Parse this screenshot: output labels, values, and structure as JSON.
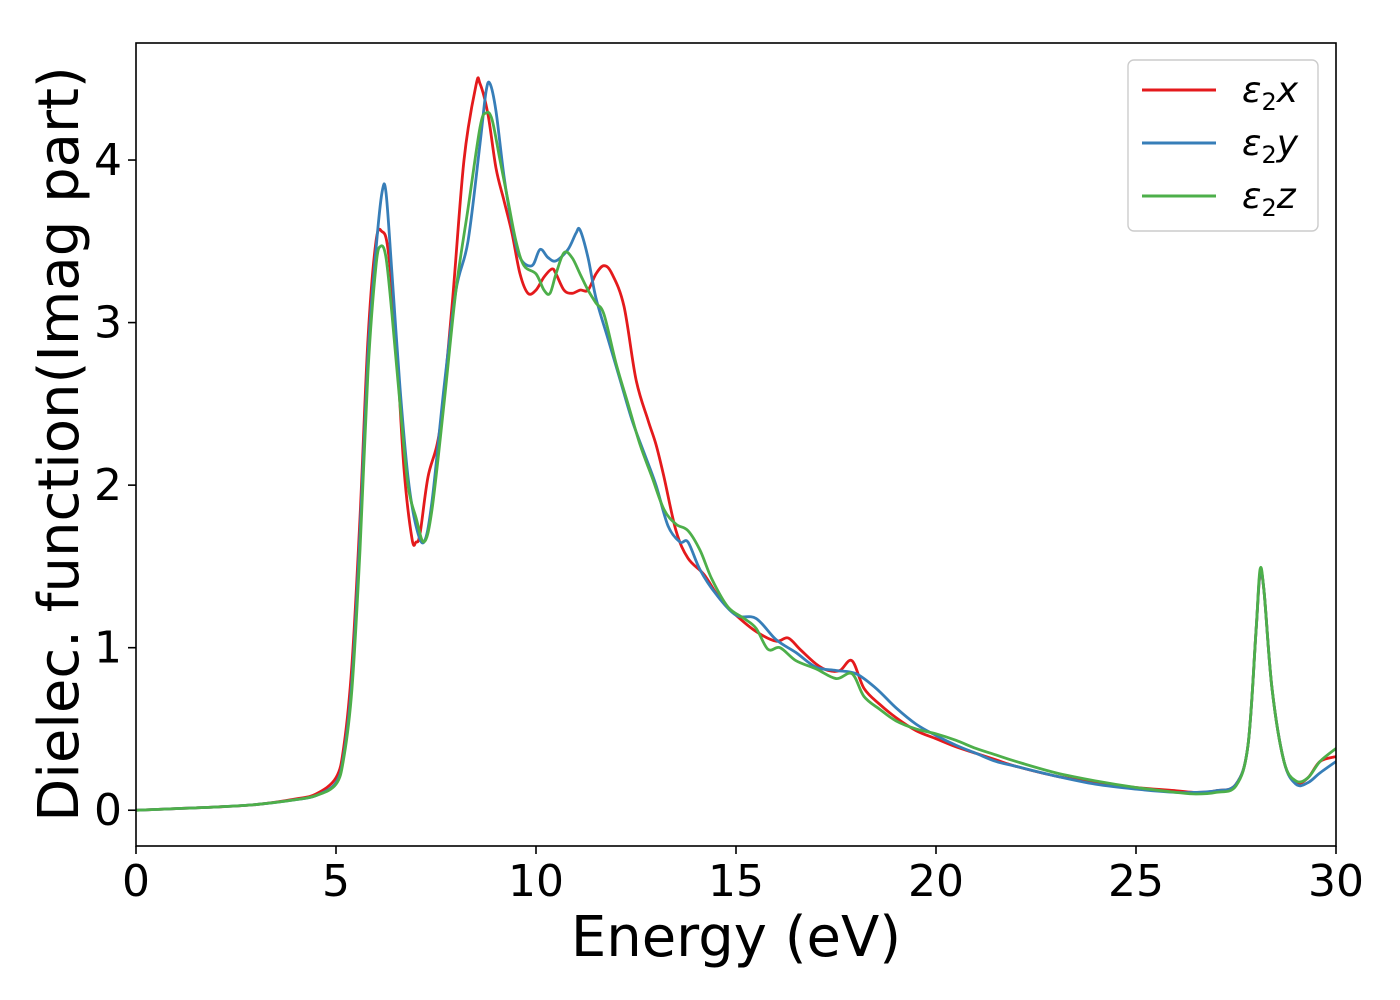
{
  "chart_data": {
    "type": "line",
    "title": "",
    "xlabel": "Energy (eV)",
    "ylabel": "Dielec. function(Imag part)",
    "xlim": [
      0,
      30
    ],
    "ylim": [
      -0.22,
      4.72
    ],
    "xticks": [
      0,
      5,
      10,
      15,
      20,
      25,
      30
    ],
    "yticks": [
      0,
      1,
      2,
      3,
      4
    ],
    "grid": false,
    "legend_position": "top-right",
    "series": [
      {
        "name": "ε2x",
        "legend_base": "ε",
        "legend_sub": "2",
        "legend_suffix": "x",
        "color": "#e41a1c",
        "x": [
          0,
          1,
          2,
          3,
          4,
          4.5,
          5,
          5.2,
          5.4,
          5.6,
          5.8,
          6.0,
          6.15,
          6.3,
          6.5,
          6.7,
          6.9,
          7.0,
          7.1,
          7.3,
          7.6,
          7.9,
          8.2,
          8.5,
          8.6,
          8.8,
          9.0,
          9.2,
          9.4,
          9.6,
          9.8,
          10.0,
          10.2,
          10.4,
          10.5,
          10.7,
          10.9,
          11.1,
          11.3,
          11.5,
          11.7,
          11.9,
          12.2,
          12.5,
          12.8,
          13.0,
          13.2,
          13.5,
          13.8,
          14.2,
          14.6,
          15.0,
          15.5,
          16.0,
          16.3,
          16.6,
          17.0,
          17.3,
          17.6,
          17.9,
          18.2,
          18.6,
          19.0,
          19.5,
          20.0,
          20.5,
          21.0,
          21.5,
          22.0,
          23.0,
          24.0,
          25.0,
          26.0,
          26.5,
          27.0,
          27.5,
          27.8,
          28.0,
          28.1,
          28.2,
          28.4,
          28.7,
          29.0,
          29.3,
          29.6,
          30.0
        ],
        "y": [
          0.0,
          0.01,
          0.02,
          0.035,
          0.07,
          0.1,
          0.2,
          0.4,
          0.9,
          1.8,
          2.9,
          3.5,
          3.56,
          3.45,
          2.9,
          2.1,
          1.67,
          1.65,
          1.7,
          2.05,
          2.35,
          3.1,
          4.0,
          4.46,
          4.47,
          4.28,
          3.95,
          3.75,
          3.55,
          3.3,
          3.18,
          3.2,
          3.28,
          3.33,
          3.3,
          3.2,
          3.18,
          3.2,
          3.2,
          3.3,
          3.35,
          3.3,
          3.1,
          2.65,
          2.4,
          2.25,
          2.05,
          1.72,
          1.55,
          1.45,
          1.3,
          1.2,
          1.1,
          1.04,
          1.06,
          0.99,
          0.9,
          0.86,
          0.86,
          0.92,
          0.75,
          0.65,
          0.57,
          0.49,
          0.44,
          0.39,
          0.35,
          0.31,
          0.27,
          0.21,
          0.17,
          0.14,
          0.12,
          0.11,
          0.12,
          0.16,
          0.4,
          1.1,
          1.45,
          1.35,
          0.75,
          0.3,
          0.17,
          0.2,
          0.3,
          0.33
        ]
      },
      {
        "name": "ε2y",
        "legend_base": "ε",
        "legend_sub": "2",
        "legend_suffix": "y",
        "color": "#377eb8",
        "x": [
          0,
          1,
          2,
          3,
          4,
          4.5,
          5,
          5.2,
          5.4,
          5.6,
          5.8,
          6.0,
          6.15,
          6.25,
          6.4,
          6.6,
          6.8,
          7.0,
          7.2,
          7.4,
          7.7,
          8.0,
          8.3,
          8.6,
          8.75,
          8.85,
          9.0,
          9.2,
          9.4,
          9.6,
          9.9,
          10.1,
          10.3,
          10.5,
          10.8,
          11.0,
          11.1,
          11.3,
          11.5,
          11.8,
          12.1,
          12.4,
          12.7,
          13.0,
          13.3,
          13.6,
          13.8,
          14.1,
          14.5,
          15.0,
          15.5,
          16.0,
          16.5,
          17.0,
          17.5,
          18.0,
          18.5,
          19.0,
          19.5,
          20.0,
          20.5,
          21.0,
          21.5,
          22.0,
          23.0,
          24.0,
          25.0,
          26.0,
          26.5,
          27.0,
          27.5,
          27.8,
          28.0,
          28.1,
          28.2,
          28.4,
          28.7,
          29.0,
          29.3,
          29.6,
          30.0
        ],
        "y": [
          0.0,
          0.01,
          0.02,
          0.035,
          0.065,
          0.09,
          0.17,
          0.35,
          0.8,
          1.7,
          2.8,
          3.45,
          3.8,
          3.8,
          3.3,
          2.6,
          2.05,
          1.75,
          1.65,
          1.9,
          2.6,
          3.2,
          3.5,
          4.1,
          4.42,
          4.47,
          4.3,
          3.9,
          3.6,
          3.4,
          3.35,
          3.45,
          3.4,
          3.38,
          3.45,
          3.55,
          3.57,
          3.4,
          3.15,
          2.9,
          2.65,
          2.4,
          2.2,
          2.0,
          1.75,
          1.65,
          1.65,
          1.48,
          1.33,
          1.2,
          1.18,
          1.05,
          0.97,
          0.88,
          0.86,
          0.84,
          0.75,
          0.63,
          0.53,
          0.46,
          0.4,
          0.35,
          0.3,
          0.27,
          0.21,
          0.16,
          0.13,
          0.11,
          0.11,
          0.12,
          0.16,
          0.4,
          1.1,
          1.46,
          1.35,
          0.75,
          0.3,
          0.16,
          0.17,
          0.23,
          0.3
        ]
      },
      {
        "name": "ε2z",
        "legend_base": "ε",
        "legend_sub": "2",
        "legend_suffix": "z",
        "color": "#4daf4a",
        "x": [
          0,
          1,
          2,
          3,
          4,
          4.5,
          5,
          5.2,
          5.4,
          5.6,
          5.8,
          6.0,
          6.12,
          6.25,
          6.4,
          6.6,
          6.8,
          7.0,
          7.2,
          7.4,
          7.7,
          8.0,
          8.3,
          8.6,
          8.75,
          8.9,
          9.1,
          9.3,
          9.5,
          9.7,
          10.0,
          10.2,
          10.35,
          10.5,
          10.7,
          10.9,
          11.1,
          11.3,
          11.5,
          11.7,
          12.0,
          12.3,
          12.6,
          12.9,
          13.2,
          13.5,
          13.8,
          14.1,
          14.4,
          14.8,
          15.2,
          15.5,
          15.8,
          16.1,
          16.5,
          17.0,
          17.5,
          17.9,
          18.2,
          18.6,
          19.0,
          19.5,
          20.0,
          20.5,
          21.0,
          21.5,
          22.0,
          23.0,
          24.0,
          25.0,
          26.0,
          26.5,
          27.0,
          27.5,
          27.8,
          28.0,
          28.1,
          28.2,
          28.4,
          28.7,
          29.0,
          29.3,
          29.6,
          30.0
        ],
        "y": [
          0.0,
          0.01,
          0.02,
          0.035,
          0.065,
          0.09,
          0.16,
          0.33,
          0.75,
          1.6,
          2.7,
          3.35,
          3.47,
          3.4,
          3.05,
          2.5,
          2.0,
          1.8,
          1.65,
          1.85,
          2.5,
          3.2,
          3.7,
          4.2,
          4.29,
          4.25,
          4.0,
          3.75,
          3.5,
          3.35,
          3.3,
          3.2,
          3.18,
          3.3,
          3.43,
          3.4,
          3.3,
          3.2,
          3.12,
          3.05,
          2.75,
          2.5,
          2.25,
          2.05,
          1.85,
          1.76,
          1.72,
          1.6,
          1.42,
          1.25,
          1.18,
          1.12,
          0.99,
          1.0,
          0.92,
          0.87,
          0.81,
          0.84,
          0.7,
          0.62,
          0.55,
          0.5,
          0.47,
          0.43,
          0.38,
          0.34,
          0.3,
          0.23,
          0.18,
          0.14,
          0.11,
          0.1,
          0.11,
          0.15,
          0.4,
          1.1,
          1.48,
          1.35,
          0.75,
          0.3,
          0.18,
          0.2,
          0.3,
          0.38
        ]
      }
    ]
  }
}
